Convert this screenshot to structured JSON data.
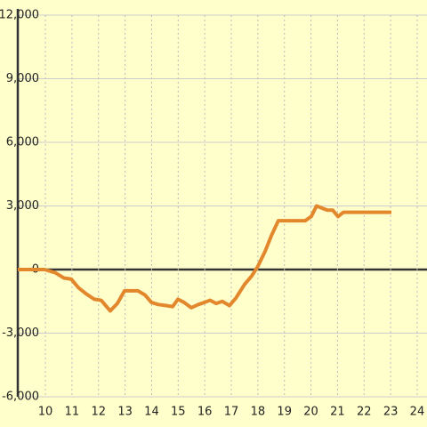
{
  "chart_data": {
    "type": "line",
    "x": [
      8.96,
      9.97,
      10.37,
      10.7,
      10.97,
      11.24,
      11.54,
      11.84,
      12.1,
      12.44,
      12.71,
      12.98,
      13.48,
      13.75,
      13.99,
      14.25,
      14.55,
      14.79,
      14.99,
      15.22,
      15.49,
      15.76,
      15.99,
      16.2,
      16.43,
      16.66,
      16.93,
      17.17,
      17.5,
      17.77,
      18.0,
      18.27,
      18.51,
      18.77,
      19.78,
      20.01,
      20.21,
      20.41,
      20.62,
      20.82,
      21.02,
      21.22,
      21.42,
      23.03
    ],
    "series": [
      {
        "color": "#e3872d",
        "values": [
          0,
          0,
          -150,
          -400,
          -450,
          -850,
          -1150,
          -1400,
          -1450,
          -1950,
          -1600,
          -1000,
          -1000,
          -1200,
          -1550,
          -1650,
          -1700,
          -1750,
          -1400,
          -1550,
          -1800,
          -1650,
          -1550,
          -1450,
          -1600,
          -1500,
          -1700,
          -1350,
          -700,
          -300,
          150,
          850,
          1600,
          2300,
          2300,
          2500,
          3000,
          2900,
          2800,
          2800,
          2500,
          2700,
          2700,
          2700
        ]
      }
    ],
    "xlim": [
      8.96,
      24.37
    ],
    "xticks": [
      10,
      11,
      12,
      13,
      14,
      15,
      16,
      17,
      18,
      19,
      20,
      21,
      22,
      23,
      24
    ],
    "ylim": [
      -6000,
      12000
    ],
    "yticks": [
      {
        "value": -6000,
        "label": "-6,000"
      },
      {
        "value": -3000,
        "label": "-3,000"
      },
      0,
      {
        "value": 3000,
        "label": "3,000"
      },
      {
        "value": 6000,
        "label": "6,000"
      },
      {
        "value": 9000,
        "label": "9,000"
      },
      {
        "value": 12000,
        "label": "12,000"
      }
    ],
    "grid": true
  }
}
